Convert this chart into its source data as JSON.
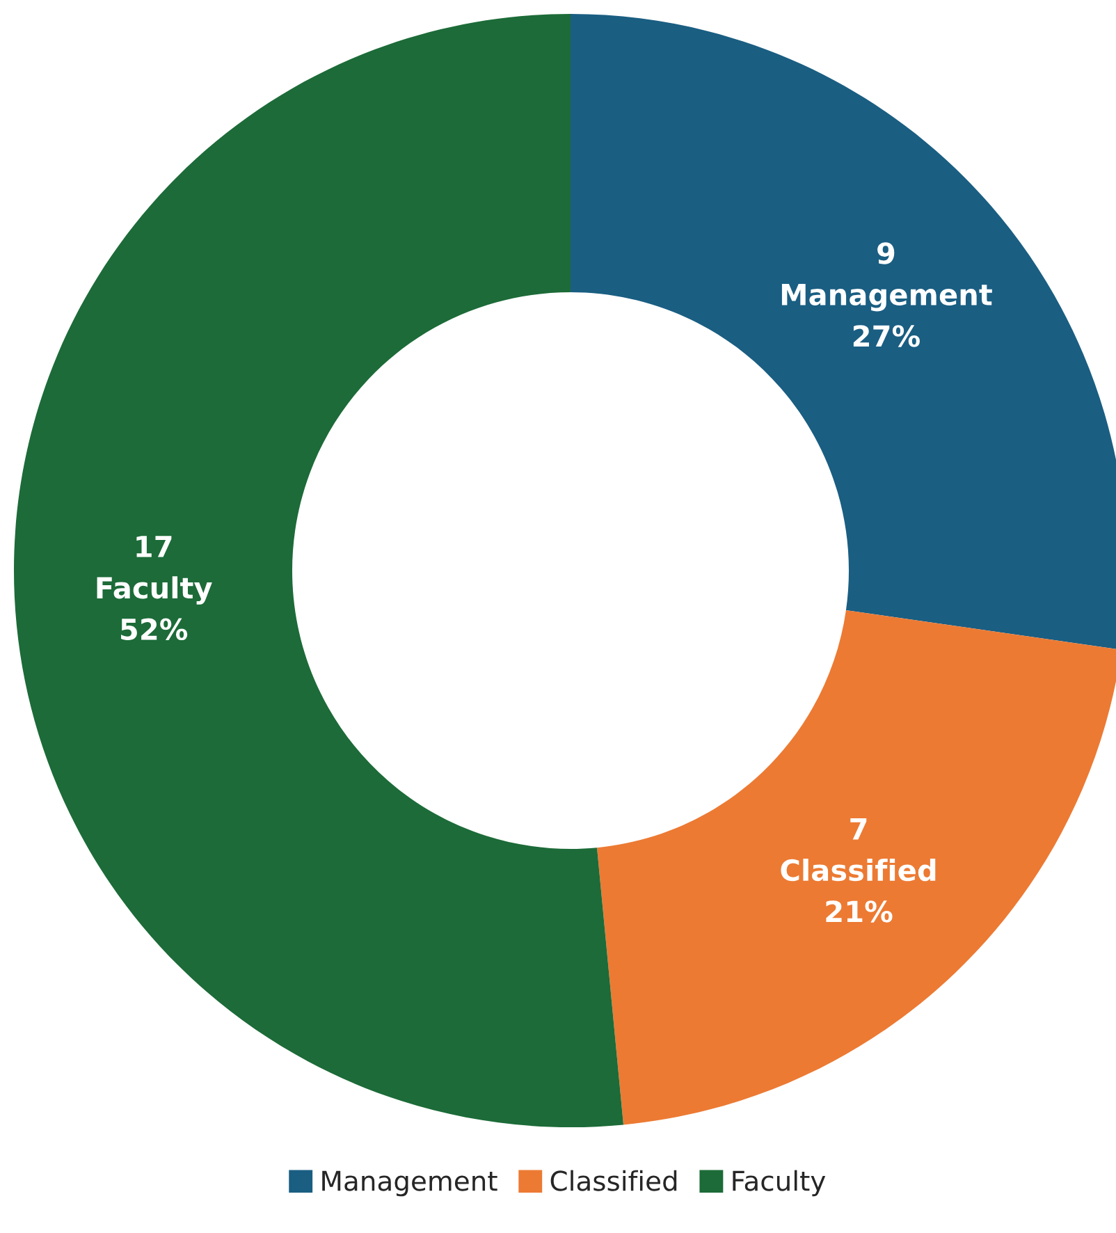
{
  "chart_data": {
    "type": "donut",
    "categories": [
      "Management",
      "Classified",
      "Faculty"
    ],
    "values": [
      9,
      7,
      17
    ],
    "colors": [
      "#1a5e82",
      "#ec7a33",
      "#1c6b38"
    ],
    "value_labels": [
      "9\nManagement\n27%",
      "7\nClassified\n21%",
      "17\nFaculty\n52%"
    ],
    "legend": "bottom"
  }
}
